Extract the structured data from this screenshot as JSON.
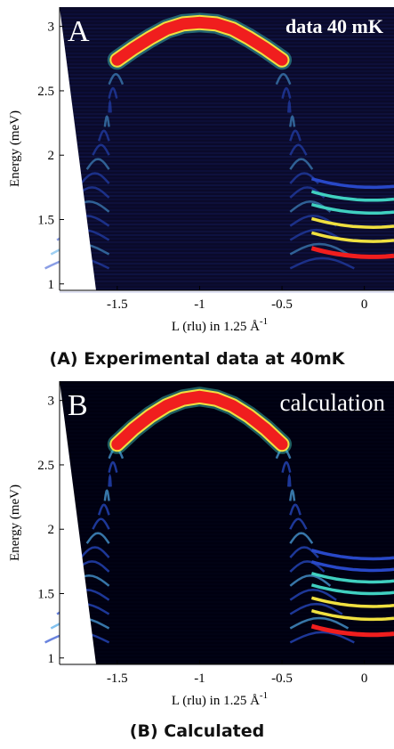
{
  "chart_data": [
    {
      "type": "heatmap",
      "panel_letter": "A",
      "inset_label": "data 40 mK",
      "ylabel": "Energy (meV)",
      "xlabel": "L (rlu) in 1.25 Å",
      "xlabel_sup": "-1",
      "xlim": [
        -1.85,
        0.18
      ],
      "ylim": [
        0.95,
        3.15
      ],
      "xticks": [
        -1.5,
        -1,
        -0.5,
        0
      ],
      "xtick_labels": [
        "-1.5",
        "-1",
        "-0.5",
        "0"
      ],
      "yticks": [
        1,
        1.5,
        2,
        2.5,
        3
      ],
      "ytick_labels": [
        "1",
        "1.5",
        "2",
        "2.5",
        "3"
      ],
      "caption": "(A) Experimental data at 40mK",
      "dispersion": {
        "x": [
          -1.5,
          -1.4,
          -1.3,
          -1.2,
          -1.1,
          -1.0,
          -0.9,
          -0.8,
          -0.7,
          -0.6,
          -0.5
        ],
        "energy": [
          2.74,
          2.83,
          2.91,
          2.98,
          3.02,
          3.03,
          3.02,
          2.98,
          2.91,
          2.83,
          2.74
        ]
      },
      "bound_states_near_0": [
        1.21,
        1.33,
        1.44,
        1.55,
        1.65,
        1.75
      ]
    },
    {
      "type": "heatmap",
      "panel_letter": "B",
      "inset_label": "calculation",
      "ylabel": "Energy (meV)",
      "xlabel": "L (rlu) in 1.25 Å",
      "xlabel_sup": "-1",
      "xlim": [
        -1.85,
        0.18
      ],
      "ylim": [
        0.95,
        3.15
      ],
      "xticks": [
        -1.5,
        -1,
        -0.5,
        0
      ],
      "xtick_labels": [
        "-1.5",
        "-1",
        "-0.5",
        "0"
      ],
      "yticks": [
        1,
        1.5,
        2,
        2.5,
        3
      ],
      "ytick_labels": [
        "1",
        "1.5",
        "2",
        "2.5",
        "3"
      ],
      "caption": "(B) Calculated",
      "dispersion": {
        "x": [
          -1.5,
          -1.4,
          -1.3,
          -1.2,
          -1.1,
          -1.0,
          -0.9,
          -0.8,
          -0.7,
          -0.6,
          -0.5
        ],
        "energy": [
          2.66,
          2.78,
          2.88,
          2.96,
          3.01,
          3.03,
          3.01,
          2.96,
          2.88,
          2.78,
          2.66
        ]
      },
      "bound_states_near_0": [
        1.18,
        1.3,
        1.4,
        1.5,
        1.59,
        1.68,
        1.77
      ]
    }
  ],
  "colors": {
    "peak": "#f01e1e",
    "high": "#f0e040",
    "mid": "#40d0c0",
    "low": "#2848c8",
    "background": "#000018"
  }
}
